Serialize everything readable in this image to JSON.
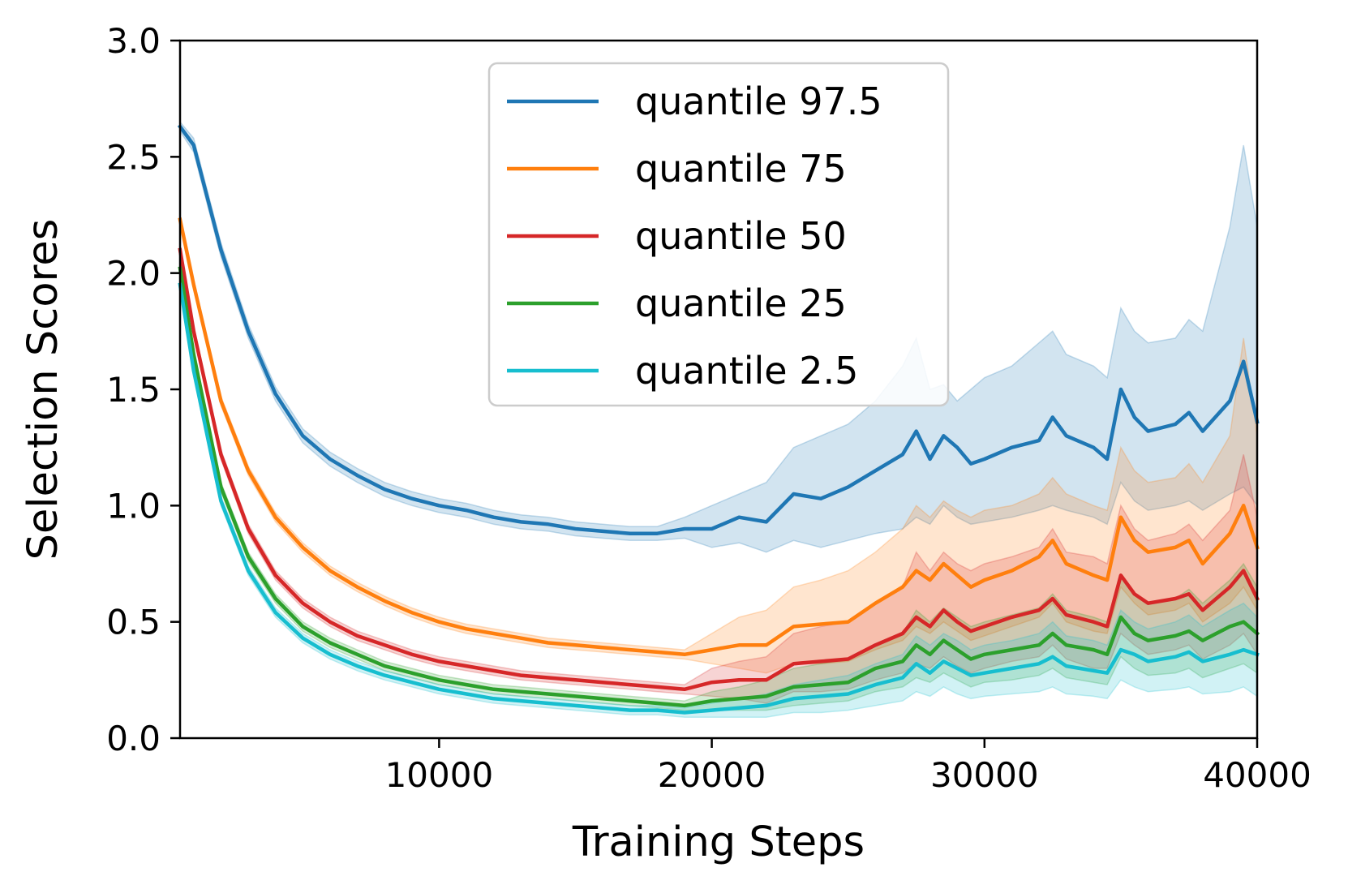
{
  "chart_data": {
    "type": "line",
    "xlabel": "Training Steps",
    "ylabel": "Selection Scores",
    "xlim": [
      500,
      40000
    ],
    "ylim": [
      0.0,
      3.0
    ],
    "xticks": [
      10000,
      20000,
      30000,
      40000
    ],
    "xtick_labels": [
      "10000",
      "20000",
      "30000",
      "40000"
    ],
    "yticks": [
      0.0,
      0.5,
      1.0,
      1.5,
      2.0,
      2.5,
      3.0
    ],
    "ytick_labels": [
      "0.0",
      "0.5",
      "1.0",
      "1.5",
      "2.0",
      "2.5",
      "3.0"
    ],
    "grid": false,
    "legend_position": "top-center",
    "shaded_band": true,
    "series": [
      {
        "name": "quantile 97.5",
        "color": "#1f77b4",
        "x": [
          500,
          1000,
          2000,
          3000,
          4000,
          5000,
          6000,
          7000,
          8000,
          9000,
          10000,
          11000,
          12000,
          13000,
          14000,
          15000,
          16000,
          17000,
          18000,
          19000,
          20000,
          21000,
          22000,
          23000,
          24000,
          25000,
          26000,
          27000,
          27500,
          28000,
          28500,
          29000,
          29500,
          30000,
          31000,
          32000,
          32500,
          33000,
          34000,
          34500,
          35000,
          35500,
          36000,
          37000,
          37500,
          38000,
          39000,
          39500,
          40000
        ],
        "y": [
          2.63,
          2.55,
          2.1,
          1.75,
          1.48,
          1.3,
          1.2,
          1.13,
          1.07,
          1.03,
          1.0,
          0.98,
          0.95,
          0.93,
          0.92,
          0.9,
          0.89,
          0.88,
          0.88,
          0.9,
          0.9,
          0.95,
          0.93,
          1.05,
          1.03,
          1.08,
          1.15,
          1.22,
          1.32,
          1.2,
          1.3,
          1.25,
          1.18,
          1.2,
          1.25,
          1.28,
          1.38,
          1.3,
          1.25,
          1.2,
          1.5,
          1.38,
          1.32,
          1.35,
          1.4,
          1.32,
          1.45,
          1.62,
          1.36
        ],
        "upper": [
          2.65,
          2.58,
          2.13,
          1.78,
          1.51,
          1.33,
          1.23,
          1.16,
          1.1,
          1.06,
          1.03,
          1.01,
          0.98,
          0.96,
          0.95,
          0.93,
          0.92,
          0.91,
          0.91,
          0.95,
          1.0,
          1.05,
          1.1,
          1.25,
          1.3,
          1.35,
          1.45,
          1.6,
          1.72,
          1.5,
          1.52,
          1.45,
          1.5,
          1.55,
          1.6,
          1.7,
          1.75,
          1.65,
          1.6,
          1.55,
          1.85,
          1.75,
          1.7,
          1.72,
          1.8,
          1.75,
          2.2,
          2.55,
          2.2
        ],
        "lower": [
          2.61,
          2.52,
          2.07,
          1.72,
          1.45,
          1.27,
          1.17,
          1.1,
          1.04,
          1.0,
          0.97,
          0.95,
          0.92,
          0.9,
          0.89,
          0.87,
          0.86,
          0.85,
          0.85,
          0.86,
          0.82,
          0.84,
          0.8,
          0.85,
          0.82,
          0.85,
          0.88,
          0.9,
          0.95,
          0.92,
          1.0,
          0.95,
          0.92,
          0.93,
          0.95,
          0.98,
          1.0,
          0.98,
          0.95,
          0.92,
          1.1,
          1.02,
          0.98,
          1.0,
          1.02,
          0.98,
          1.05,
          1.08,
          1.0
        ]
      },
      {
        "name": "quantile 75",
        "color": "#ff7f0e",
        "x": [
          500,
          1000,
          2000,
          3000,
          4000,
          5000,
          6000,
          7000,
          8000,
          9000,
          10000,
          11000,
          12000,
          13000,
          14000,
          15000,
          16000,
          17000,
          18000,
          19000,
          20000,
          21000,
          22000,
          23000,
          24000,
          25000,
          26000,
          27000,
          27500,
          28000,
          28500,
          29000,
          29500,
          30000,
          31000,
          32000,
          32500,
          33000,
          34000,
          34500,
          35000,
          35500,
          36000,
          37000,
          37500,
          38000,
          39000,
          39500,
          40000
        ],
        "y": [
          2.23,
          1.95,
          1.45,
          1.15,
          0.95,
          0.82,
          0.72,
          0.65,
          0.59,
          0.54,
          0.5,
          0.47,
          0.45,
          0.43,
          0.41,
          0.4,
          0.39,
          0.38,
          0.37,
          0.36,
          0.38,
          0.4,
          0.4,
          0.48,
          0.49,
          0.5,
          0.58,
          0.65,
          0.72,
          0.68,
          0.75,
          0.7,
          0.65,
          0.68,
          0.72,
          0.78,
          0.85,
          0.75,
          0.7,
          0.68,
          0.95,
          0.85,
          0.8,
          0.82,
          0.85,
          0.75,
          0.88,
          1.0,
          0.82
        ],
        "upper": [
          2.25,
          1.97,
          1.47,
          1.17,
          0.97,
          0.84,
          0.74,
          0.67,
          0.61,
          0.56,
          0.52,
          0.49,
          0.47,
          0.45,
          0.43,
          0.42,
          0.41,
          0.4,
          0.39,
          0.38,
          0.45,
          0.52,
          0.55,
          0.65,
          0.68,
          0.72,
          0.8,
          0.9,
          1.0,
          0.95,
          1.02,
          0.98,
          0.95,
          0.98,
          1.0,
          1.05,
          1.12,
          1.05,
          1.0,
          0.98,
          1.25,
          1.15,
          1.1,
          1.12,
          1.18,
          1.1,
          1.3,
          1.72,
          1.3
        ],
        "lower": [
          2.21,
          1.93,
          1.43,
          1.13,
          0.93,
          0.8,
          0.7,
          0.63,
          0.57,
          0.52,
          0.48,
          0.45,
          0.43,
          0.41,
          0.39,
          0.38,
          0.37,
          0.36,
          0.35,
          0.34,
          0.32,
          0.3,
          0.28,
          0.32,
          0.32,
          0.33,
          0.38,
          0.42,
          0.48,
          0.45,
          0.5,
          0.46,
          0.42,
          0.44,
          0.48,
          0.52,
          0.58,
          0.5,
          0.46,
          0.45,
          0.65,
          0.58,
          0.53,
          0.55,
          0.58,
          0.5,
          0.58,
          0.65,
          0.55
        ]
      },
      {
        "name": "quantile 50",
        "color": "#d62728",
        "x": [
          500,
          1000,
          2000,
          3000,
          4000,
          5000,
          6000,
          7000,
          8000,
          9000,
          10000,
          11000,
          12000,
          13000,
          14000,
          15000,
          16000,
          17000,
          18000,
          19000,
          20000,
          21000,
          22000,
          23000,
          24000,
          25000,
          26000,
          27000,
          27500,
          28000,
          28500,
          29000,
          29500,
          30000,
          31000,
          32000,
          32500,
          33000,
          34000,
          34500,
          35000,
          35500,
          36000,
          37000,
          37500,
          38000,
          39000,
          39500,
          40000
        ],
        "y": [
          2.1,
          1.75,
          1.22,
          0.9,
          0.7,
          0.58,
          0.5,
          0.44,
          0.4,
          0.36,
          0.33,
          0.31,
          0.29,
          0.27,
          0.26,
          0.25,
          0.24,
          0.23,
          0.22,
          0.21,
          0.24,
          0.25,
          0.25,
          0.32,
          0.33,
          0.34,
          0.4,
          0.45,
          0.52,
          0.48,
          0.55,
          0.5,
          0.46,
          0.48,
          0.52,
          0.55,
          0.6,
          0.53,
          0.5,
          0.48,
          0.7,
          0.62,
          0.58,
          0.6,
          0.62,
          0.55,
          0.65,
          0.72,
          0.6
        ],
        "upper": [
          2.12,
          1.77,
          1.24,
          0.92,
          0.72,
          0.6,
          0.52,
          0.46,
          0.42,
          0.38,
          0.35,
          0.33,
          0.31,
          0.29,
          0.28,
          0.27,
          0.26,
          0.25,
          0.24,
          0.23,
          0.3,
          0.33,
          0.35,
          0.45,
          0.48,
          0.5,
          0.58,
          0.65,
          0.8,
          0.72,
          0.8,
          0.75,
          0.72,
          0.75,
          0.78,
          0.82,
          0.9,
          0.8,
          0.78,
          0.75,
          1.0,
          0.9,
          0.85,
          0.88,
          0.92,
          0.85,
          0.98,
          1.22,
          0.95
        ],
        "lower": [
          2.08,
          1.73,
          1.2,
          0.88,
          0.68,
          0.56,
          0.48,
          0.42,
          0.38,
          0.34,
          0.31,
          0.29,
          0.27,
          0.25,
          0.24,
          0.23,
          0.22,
          0.21,
          0.2,
          0.19,
          0.18,
          0.17,
          0.15,
          0.2,
          0.2,
          0.21,
          0.25,
          0.28,
          0.32,
          0.3,
          0.35,
          0.31,
          0.28,
          0.3,
          0.33,
          0.35,
          0.4,
          0.34,
          0.3,
          0.3,
          0.45,
          0.4,
          0.36,
          0.38,
          0.4,
          0.34,
          0.4,
          0.45,
          0.36
        ]
      },
      {
        "name": "quantile 25",
        "color": "#2ca02c",
        "x": [
          500,
          1000,
          2000,
          3000,
          4000,
          5000,
          6000,
          7000,
          8000,
          9000,
          10000,
          11000,
          12000,
          13000,
          14000,
          15000,
          16000,
          17000,
          18000,
          19000,
          20000,
          21000,
          22000,
          23000,
          24000,
          25000,
          26000,
          27000,
          27500,
          28000,
          28500,
          29000,
          29500,
          30000,
          31000,
          32000,
          32500,
          33000,
          34000,
          34500,
          35000,
          35500,
          36000,
          37000,
          37500,
          38000,
          39000,
          39500,
          40000
        ],
        "y": [
          2.02,
          1.65,
          1.08,
          0.78,
          0.6,
          0.48,
          0.41,
          0.36,
          0.31,
          0.28,
          0.25,
          0.23,
          0.21,
          0.2,
          0.19,
          0.18,
          0.17,
          0.16,
          0.15,
          0.14,
          0.16,
          0.17,
          0.18,
          0.22,
          0.23,
          0.24,
          0.3,
          0.33,
          0.4,
          0.36,
          0.42,
          0.38,
          0.34,
          0.36,
          0.38,
          0.4,
          0.45,
          0.4,
          0.38,
          0.36,
          0.52,
          0.45,
          0.42,
          0.44,
          0.46,
          0.42,
          0.48,
          0.5,
          0.45
        ],
        "upper": [
          2.04,
          1.67,
          1.1,
          0.8,
          0.62,
          0.5,
          0.43,
          0.38,
          0.33,
          0.3,
          0.27,
          0.25,
          0.23,
          0.22,
          0.21,
          0.2,
          0.19,
          0.18,
          0.17,
          0.16,
          0.2,
          0.22,
          0.25,
          0.3,
          0.32,
          0.34,
          0.4,
          0.45,
          0.55,
          0.5,
          0.56,
          0.52,
          0.48,
          0.5,
          0.53,
          0.56,
          0.62,
          0.55,
          0.52,
          0.5,
          0.7,
          0.62,
          0.58,
          0.6,
          0.64,
          0.58,
          0.68,
          0.75,
          0.65
        ],
        "lower": [
          2.0,
          1.63,
          1.06,
          0.76,
          0.58,
          0.46,
          0.39,
          0.34,
          0.29,
          0.26,
          0.23,
          0.21,
          0.19,
          0.18,
          0.17,
          0.16,
          0.15,
          0.14,
          0.13,
          0.12,
          0.12,
          0.12,
          0.12,
          0.14,
          0.15,
          0.16,
          0.2,
          0.22,
          0.26,
          0.24,
          0.28,
          0.25,
          0.22,
          0.24,
          0.25,
          0.27,
          0.3,
          0.26,
          0.24,
          0.23,
          0.35,
          0.3,
          0.27,
          0.28,
          0.3,
          0.26,
          0.3,
          0.32,
          0.28
        ]
      },
      {
        "name": "quantile 2.5",
        "color": "#17becf",
        "x": [
          500,
          1000,
          2000,
          3000,
          4000,
          5000,
          6000,
          7000,
          8000,
          9000,
          10000,
          11000,
          12000,
          13000,
          14000,
          15000,
          16000,
          17000,
          18000,
          19000,
          20000,
          21000,
          22000,
          23000,
          24000,
          25000,
          26000,
          27000,
          27500,
          28000,
          28500,
          29000,
          29500,
          30000,
          31000,
          32000,
          32500,
          33000,
          34000,
          34500,
          35000,
          35500,
          36000,
          37000,
          37500,
          38000,
          39000,
          39500,
          40000
        ],
        "y": [
          1.95,
          1.58,
          1.02,
          0.72,
          0.54,
          0.43,
          0.36,
          0.31,
          0.27,
          0.24,
          0.21,
          0.19,
          0.17,
          0.16,
          0.15,
          0.14,
          0.13,
          0.12,
          0.12,
          0.11,
          0.12,
          0.13,
          0.14,
          0.17,
          0.18,
          0.19,
          0.23,
          0.26,
          0.32,
          0.28,
          0.33,
          0.3,
          0.27,
          0.28,
          0.3,
          0.32,
          0.35,
          0.31,
          0.29,
          0.28,
          0.38,
          0.36,
          0.33,
          0.35,
          0.37,
          0.33,
          0.36,
          0.38,
          0.36
        ],
        "upper": [
          1.97,
          1.6,
          1.04,
          0.74,
          0.56,
          0.45,
          0.38,
          0.33,
          0.29,
          0.26,
          0.23,
          0.21,
          0.19,
          0.18,
          0.17,
          0.16,
          0.15,
          0.14,
          0.14,
          0.13,
          0.15,
          0.17,
          0.19,
          0.23,
          0.25,
          0.27,
          0.32,
          0.36,
          0.44,
          0.4,
          0.45,
          0.42,
          0.38,
          0.4,
          0.42,
          0.45,
          0.5,
          0.44,
          0.42,
          0.4,
          0.55,
          0.5,
          0.47,
          0.5,
          0.53,
          0.48,
          0.55,
          0.58,
          0.52
        ],
        "lower": [
          1.93,
          1.56,
          1.0,
          0.7,
          0.52,
          0.41,
          0.34,
          0.29,
          0.25,
          0.22,
          0.19,
          0.17,
          0.15,
          0.14,
          0.13,
          0.12,
          0.11,
          0.1,
          0.1,
          0.09,
          0.09,
          0.09,
          0.09,
          0.11,
          0.11,
          0.12,
          0.14,
          0.16,
          0.2,
          0.18,
          0.22,
          0.19,
          0.17,
          0.18,
          0.19,
          0.2,
          0.22,
          0.19,
          0.18,
          0.17,
          0.25,
          0.22,
          0.2,
          0.21,
          0.22,
          0.19,
          0.2,
          0.22,
          0.18
        ]
      }
    ]
  }
}
